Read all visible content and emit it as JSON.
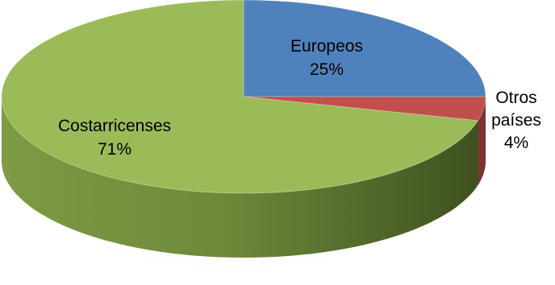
{
  "chart_data": {
    "type": "pie",
    "title": "",
    "slices": [
      {
        "label": "Europeos",
        "value": 25,
        "value_text": "25%",
        "color": "#4f81bd"
      },
      {
        "label": "Otros países",
        "label_lines": [
          "Otros",
          "países"
        ],
        "value": 4,
        "value_text": "4%",
        "color": "#c0504d"
      },
      {
        "label": "Costarricenses",
        "value": 71,
        "value_text": "71%",
        "color": "#9bbb59"
      }
    ],
    "style": "3d-tilted",
    "legend": "none"
  }
}
